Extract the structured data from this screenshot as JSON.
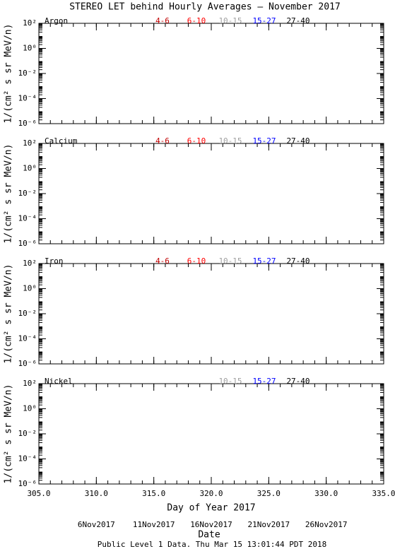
{
  "title": "STEREO LET behind Hourly Averages – November 2017",
  "footer": "Public Level 1 Data. Thu Mar 15 13:01:44 PDT 2018",
  "chart_data": [
    {
      "type": "line",
      "panel_label": "Argon",
      "ylabel": "1/(cm² s sr MeV/n)",
      "log_y": true,
      "x": [],
      "series": [
        {
          "name": "4-6",
          "color": "#c00000",
          "values": []
        },
        {
          "name": "6-10",
          "color": "#ff0000",
          "values": []
        },
        {
          "name": "10-15",
          "color": "#a0a0a0",
          "values": []
        },
        {
          "name": "15-27",
          "color": "#0000ff",
          "values": []
        },
        {
          "name": "27-40",
          "color": "#000000",
          "values": []
        }
      ],
      "xlim": [
        305,
        335
      ],
      "xticks": [
        305,
        310,
        315,
        320,
        325,
        330,
        335
      ],
      "ylim": [
        1e-06,
        100
      ],
      "yticks": [
        {
          "value": 100,
          "label": "10²"
        },
        {
          "value": 1,
          "label": "10⁰"
        },
        {
          "value": 0.01,
          "label": "10⁻²"
        },
        {
          "value": 0.0001,
          "label": "10⁻⁴"
        },
        {
          "value": 1e-06,
          "label": "10⁻⁶"
        }
      ]
    },
    {
      "type": "line",
      "panel_label": "Calcium",
      "ylabel": "1/(cm² s sr MeV/n)",
      "log_y": true,
      "x": [],
      "series": [
        {
          "name": "4-6",
          "color": "#c00000",
          "values": []
        },
        {
          "name": "6-10",
          "color": "#ff0000",
          "values": []
        },
        {
          "name": "10-15",
          "color": "#a0a0a0",
          "values": []
        },
        {
          "name": "15-27",
          "color": "#0000ff",
          "values": []
        },
        {
          "name": "27-40",
          "color": "#000000",
          "values": []
        }
      ],
      "xlim": [
        305,
        335
      ],
      "xticks": [
        305,
        310,
        315,
        320,
        325,
        330,
        335
      ],
      "ylim": [
        1e-06,
        100
      ],
      "yticks": [
        {
          "value": 100,
          "label": "10²"
        },
        {
          "value": 1,
          "label": "10⁰"
        },
        {
          "value": 0.01,
          "label": "10⁻²"
        },
        {
          "value": 0.0001,
          "label": "10⁻⁴"
        },
        {
          "value": 1e-06,
          "label": "10⁻⁶"
        }
      ]
    },
    {
      "type": "line",
      "panel_label": "Iron",
      "ylabel": "1/(cm² s sr MeV/n)",
      "log_y": true,
      "x": [],
      "series": [
        {
          "name": "4-6",
          "color": "#c00000",
          "values": []
        },
        {
          "name": "6-10",
          "color": "#ff0000",
          "values": []
        },
        {
          "name": "10-15",
          "color": "#a0a0a0",
          "values": []
        },
        {
          "name": "15-27",
          "color": "#0000ff",
          "values": []
        },
        {
          "name": "27-40",
          "color": "#000000",
          "values": []
        }
      ],
      "xlim": [
        305,
        335
      ],
      "xticks": [
        305,
        310,
        315,
        320,
        325,
        330,
        335
      ],
      "ylim": [
        1e-06,
        100
      ],
      "yticks": [
        {
          "value": 100,
          "label": "10²"
        },
        {
          "value": 1,
          "label": "10⁰"
        },
        {
          "value": 0.01,
          "label": "10⁻²"
        },
        {
          "value": 0.0001,
          "label": "10⁻⁴"
        },
        {
          "value": 1e-06,
          "label": "10⁻⁶"
        }
      ]
    },
    {
      "type": "line",
      "panel_label": "Nickel",
      "ylabel": "1/(cm² s sr MeV/n)",
      "log_y": true,
      "x": [],
      "series": [
        {
          "name": "10-15",
          "color": "#a0a0a0",
          "values": []
        },
        {
          "name": "15-27",
          "color": "#0000ff",
          "values": []
        },
        {
          "name": "27-40",
          "color": "#000000",
          "values": []
        }
      ],
      "xlim": [
        305,
        335
      ],
      "xticks": [
        {
          "value": 305,
          "label": "305.0"
        },
        {
          "value": 310,
          "label": "310.0"
        },
        {
          "value": 315,
          "label": "315.0"
        },
        {
          "value": 320,
          "label": "320.0"
        },
        {
          "value": 325,
          "label": "325.0"
        },
        {
          "value": 330,
          "label": "330.0"
        },
        {
          "value": 335,
          "label": "335.0"
        }
      ],
      "xlabel": "Day of Year 2017",
      "date_ticks": [
        {
          "value": 310,
          "label": "6Nov2017"
        },
        {
          "value": 315,
          "label": "11Nov2017"
        },
        {
          "value": 320,
          "label": "16Nov2017"
        },
        {
          "value": 325,
          "label": "21Nov2017"
        },
        {
          "value": 330,
          "label": "26Nov2017"
        }
      ],
      "date_label": "Date",
      "ylim": [
        1e-06,
        100
      ],
      "yticks": [
        {
          "value": 100,
          "label": "10²"
        },
        {
          "value": 1,
          "label": "10⁰"
        },
        {
          "value": 0.01,
          "label": "10⁻²"
        },
        {
          "value": 0.0001,
          "label": "10⁻⁴"
        },
        {
          "value": 1e-06,
          "label": "10⁻⁶"
        }
      ]
    }
  ]
}
